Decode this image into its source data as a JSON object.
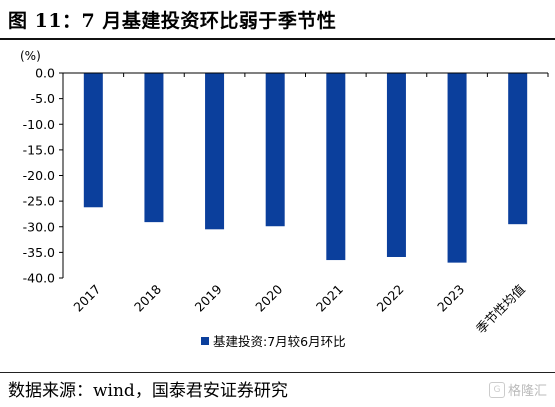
{
  "header": {
    "title": "图 11：7 月基建投资环比弱于季节性"
  },
  "source": {
    "text": "数据来源：wind，国泰君安证券研究"
  },
  "watermark": {
    "icon": "G",
    "text": "格隆汇"
  },
  "colors": {
    "bar": "#0b3f9c",
    "axis": "#000000"
  },
  "chart_data": {
    "type": "bar",
    "unit_label": "(%)",
    "categories": [
      "2017",
      "2018",
      "2019",
      "2020",
      "2021",
      "2022",
      "2023",
      "季节性均值"
    ],
    "series": [
      {
        "name": "基建投资:7月较6月环比",
        "values": [
          -26.2,
          -29.1,
          -30.5,
          -29.9,
          -36.5,
          -35.9,
          -37.0,
          -29.5
        ]
      }
    ],
    "ylim": [
      -40,
      0
    ],
    "yticks": [
      0,
      -5,
      -10,
      -15,
      -20,
      -25,
      -30,
      -35,
      -40
    ],
    "ytick_labels": [
      "0.0",
      "-5.0",
      "-10.0",
      "-15.0",
      "-20.0",
      "-25.0",
      "-30.0",
      "-35.0",
      "-40.0"
    ],
    "legend_position": "bottom-left",
    "grid": false
  }
}
